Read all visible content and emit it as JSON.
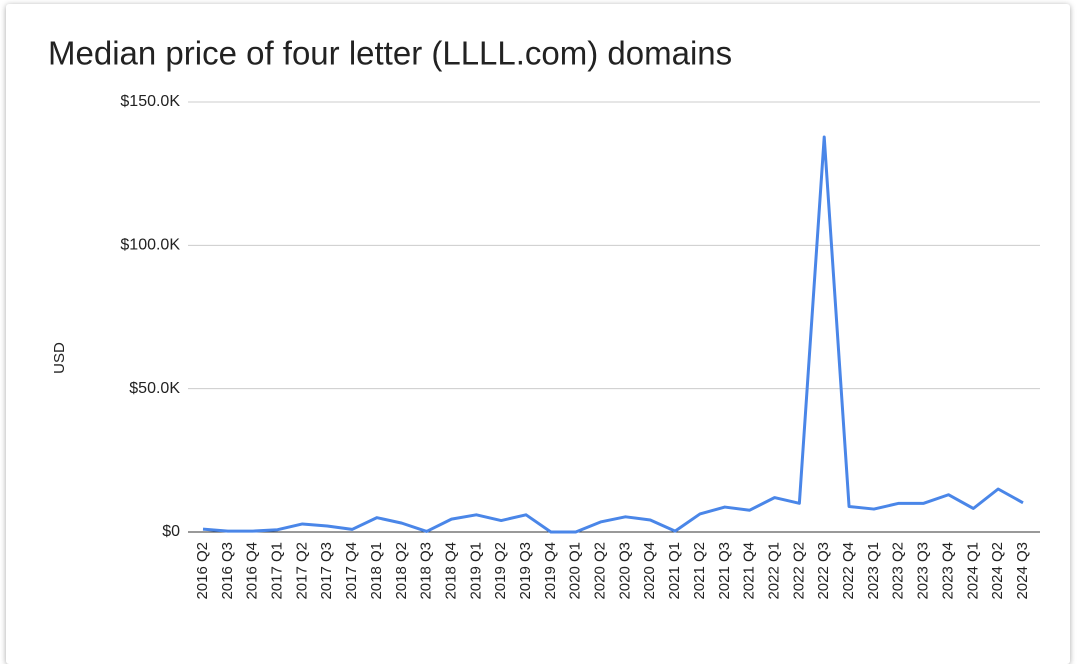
{
  "chart_data": {
    "type": "line",
    "title": "Median price of four letter (LLLL.com) domains",
    "ylabel": "USD",
    "categories": [
      "2016 Q2",
      "2016 Q3",
      "2016 Q4",
      "2017 Q1",
      "2017 Q2",
      "2017 Q3",
      "2017 Q4",
      "2018 Q1",
      "2018 Q2",
      "2018 Q3",
      "2018 Q4",
      "2019 Q1",
      "2019 Q2",
      "2019 Q3",
      "2019 Q4",
      "2020 Q1",
      "2020 Q2",
      "2020 Q3",
      "2020 Q4",
      "2021 Q1",
      "2021 Q2",
      "2021 Q3",
      "2021 Q4",
      "2022 Q1",
      "2022 Q2",
      "2022 Q3",
      "2022 Q4",
      "2023 Q1",
      "2023 Q2",
      "2023 Q3",
      "2023 Q4",
      "2024 Q1",
      "2024 Q2",
      "2024 Q3"
    ],
    "series": [
      {
        "name": "USD",
        "color": "#4a86e8",
        "values": [
          1000,
          300,
          300,
          800,
          2800,
          2100,
          900,
          5000,
          3100,
          200,
          4500,
          6000,
          4000,
          6000,
          0,
          0,
          3500,
          5300,
          4200,
          300,
          6300,
          8700,
          7600,
          12000,
          10000,
          137800,
          8900,
          8000,
          10000,
          10000,
          13000,
          8200,
          15000,
          10200
        ]
      }
    ],
    "ylim": [
      0,
      150000
    ],
    "yticks": [
      {
        "value": 0,
        "label": "$0"
      },
      {
        "value": 50000,
        "label": "$50.0K"
      },
      {
        "value": 100000,
        "label": "$100.0K"
      },
      {
        "value": 150000,
        "label": "$150.0K"
      }
    ],
    "grid": true
  }
}
